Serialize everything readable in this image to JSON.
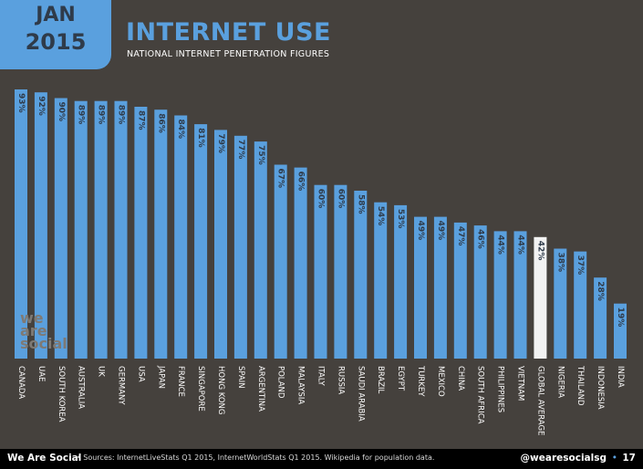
{
  "badge": {
    "line1": "JAN",
    "line2": "2015"
  },
  "header": {
    "title": "INTERNET USE",
    "subtitle": "NATIONAL INTERNET PENETRATION FIGURES"
  },
  "logo": {
    "lines": [
      "we",
      "are",
      "social"
    ]
  },
  "footer": {
    "brand": "We Are Social",
    "sources": "•  Sources: InternetLiveStats Q1 2015, InternetWorldStats Q1 2015. Wikipedia for population data.",
    "handle": "@wearesocialsg",
    "separator": "•",
    "page": "17"
  },
  "colors": {
    "bar": "#5aa0de",
    "highlight": "#f2f2f2",
    "background": "#45413d"
  },
  "chart_data": {
    "type": "bar",
    "title": "INTERNET USE",
    "subtitle": "NATIONAL INTERNET PENETRATION FIGURES",
    "categories": [
      "CANADA",
      "UAE",
      "SOUTH KOREA",
      "AUSTRALIA",
      "UK",
      "GERMANY",
      "USA",
      "JAPAN",
      "FRANCE",
      "SINGAPORE",
      "HONG KONG",
      "SPAIN",
      "ARGENTINA",
      "POLAND",
      "MALAYSIA",
      "ITALY",
      "RUSSIA",
      "SAUDI ARABIA",
      "BRAZIL",
      "EGYPT",
      "TURKEY",
      "MEXICO",
      "CHINA",
      "SOUTH AFRICA",
      "PHILIPPINES",
      "VIETNAM",
      "GLOBAL AVERAGE",
      "NIGERIA",
      "THAILAND",
      "INDONESIA",
      "INDIA"
    ],
    "values": [
      93,
      92,
      90,
      89,
      89,
      89,
      87,
      86,
      84,
      81,
      79,
      77,
      75,
      67,
      66,
      60,
      60,
      58,
      54,
      53,
      49,
      49,
      47,
      46,
      44,
      44,
      42,
      38,
      37,
      28,
      19
    ],
    "value_labels": [
      "93%",
      "92%",
      "90%",
      "89%",
      "89%",
      "89%",
      "87%",
      "86%",
      "84%",
      "81%",
      "79%",
      "77%",
      "75%",
      "67%",
      "66%",
      "60%",
      "60%",
      "58%",
      "54%",
      "53%",
      "49%",
      "49%",
      "47%",
      "46%",
      "44%",
      "44%",
      "42%",
      "38%",
      "37%",
      "28%",
      "19%"
    ],
    "highlight_category": "GLOBAL AVERAGE",
    "ylim": [
      0,
      100
    ],
    "grid": false
  }
}
